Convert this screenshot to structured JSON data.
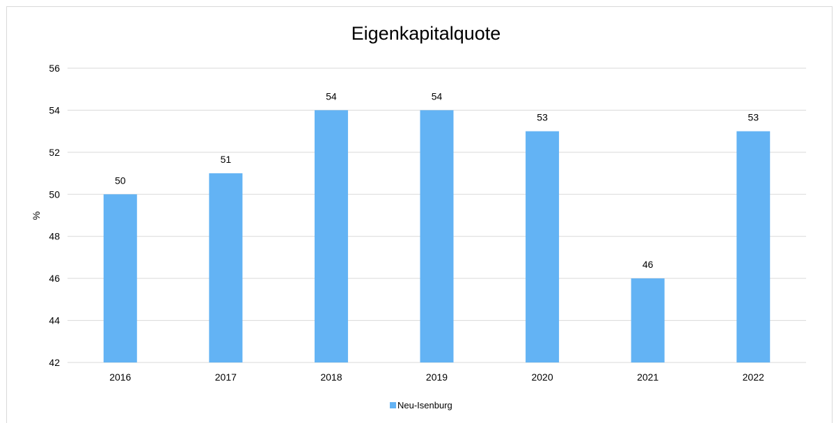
{
  "chart_data": {
    "type": "bar",
    "title": "Eigenkapitalquote",
    "xlabel": "",
    "ylabel": "%",
    "categories": [
      "2016",
      "2017",
      "2018",
      "2019",
      "2020",
      "2021",
      "2022"
    ],
    "series": [
      {
        "name": "Neu-Isenburg",
        "values": [
          50,
          51,
          54,
          54,
          53,
          46,
          53
        ],
        "color": "#63b3f4"
      }
    ],
    "ylim": [
      42,
      56
    ],
    "yticks": [
      42,
      44,
      46,
      48,
      50,
      52,
      54,
      56
    ],
    "grid": true,
    "legend": "bottom",
    "gridColor": "#d9d9d9"
  }
}
